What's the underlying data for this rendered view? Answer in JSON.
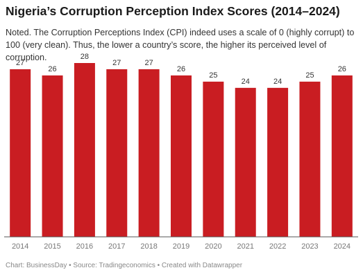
{
  "chart_data": {
    "type": "bar",
    "title": "Nigeria’s Corruption Perception Index Scores (2014–2024)",
    "subtitle": "Noted. The Corruption Perceptions Index (CPI) indeed uses a scale of 0 (highly corrupt) to 100 (very clean). Thus, the lower a country’s score, the higher its perceived level of corruption.",
    "categories": [
      "2014",
      "2015",
      "2016",
      "2017",
      "2018",
      "2019",
      "2020",
      "2021",
      "2022",
      "2023",
      "2024"
    ],
    "values": [
      27,
      26,
      28,
      27,
      27,
      26,
      25,
      24,
      24,
      25,
      26
    ],
    "color": "#c91d22",
    "ylim": [
      0,
      28
    ],
    "source": "Chart: BusinessDay • Source: Tradingeconomics • Created with Datawrapper"
  }
}
